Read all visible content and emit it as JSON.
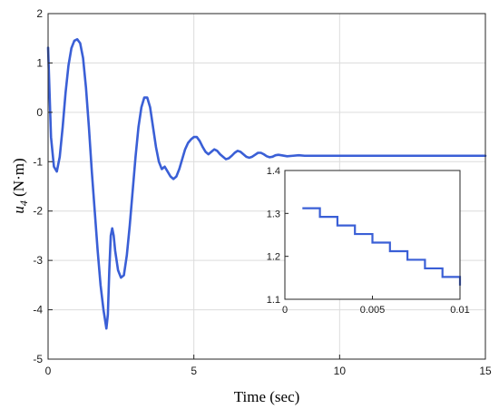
{
  "chart_data": [
    {
      "type": "line",
      "title": "",
      "xlabel": "Time (sec)",
      "ylabel_symbol": "u",
      "ylabel_subscript": "4",
      "ylabel_unit": " (N·m)",
      "xlim": [
        0,
        15
      ],
      "ylim": [
        -5,
        2
      ],
      "xticks": [
        0,
        5,
        10,
        15
      ],
      "yticks": [
        -5,
        -4,
        -3,
        -2,
        -1,
        0,
        1,
        2
      ],
      "grid": true,
      "series_color": "#3a5fd6",
      "series": [
        {
          "x": [
            0.0,
            0.05,
            0.1,
            0.2,
            0.3,
            0.4,
            0.5,
            0.6,
            0.7,
            0.8,
            0.9,
            1.0,
            1.1,
            1.2,
            1.3,
            1.4,
            1.5,
            1.6,
            1.7,
            1.8,
            1.9,
            2.0,
            2.05,
            2.1,
            2.15,
            2.2,
            2.25,
            2.3,
            2.4,
            2.5,
            2.6,
            2.7,
            2.8,
            2.9,
            3.0,
            3.1,
            3.2,
            3.3,
            3.4,
            3.5,
            3.6,
            3.7,
            3.8,
            3.9,
            4.0,
            4.1,
            4.2,
            4.3,
            4.4,
            4.5,
            4.6,
            4.7,
            4.8,
            4.9,
            5.0,
            5.1,
            5.2,
            5.3,
            5.4,
            5.5,
            5.6,
            5.7,
            5.8,
            5.9,
            6.0,
            6.1,
            6.2,
            6.3,
            6.4,
            6.5,
            6.6,
            6.7,
            6.8,
            6.9,
            7.0,
            7.1,
            7.2,
            7.3,
            7.4,
            7.5,
            7.6,
            7.7,
            7.8,
            7.9,
            8.0,
            8.2,
            8.4,
            8.6,
            8.8,
            9.0,
            9.5,
            10.0,
            11.0,
            12.0,
            13.0,
            14.0,
            15.0
          ],
          "y": [
            1.31,
            0.4,
            -0.5,
            -1.1,
            -1.2,
            -0.9,
            -0.3,
            0.4,
            0.95,
            1.3,
            1.45,
            1.48,
            1.4,
            1.1,
            0.5,
            -0.3,
            -1.2,
            -2.0,
            -2.8,
            -3.5,
            -4.0,
            -4.38,
            -4.1,
            -3.2,
            -2.5,
            -2.35,
            -2.5,
            -2.8,
            -3.2,
            -3.35,
            -3.3,
            -2.9,
            -2.3,
            -1.6,
            -0.9,
            -0.3,
            0.1,
            0.3,
            0.3,
            0.1,
            -0.3,
            -0.7,
            -1.0,
            -1.15,
            -1.1,
            -1.2,
            -1.3,
            -1.35,
            -1.3,
            -1.15,
            -0.95,
            -0.75,
            -0.62,
            -0.55,
            -0.5,
            -0.5,
            -0.58,
            -0.7,
            -0.8,
            -0.85,
            -0.8,
            -0.75,
            -0.78,
            -0.85,
            -0.9,
            -0.95,
            -0.93,
            -0.88,
            -0.82,
            -0.78,
            -0.8,
            -0.85,
            -0.9,
            -0.92,
            -0.9,
            -0.86,
            -0.82,
            -0.82,
            -0.85,
            -0.89,
            -0.91,
            -0.9,
            -0.87,
            -0.86,
            -0.87,
            -0.89,
            -0.88,
            -0.87,
            -0.88,
            -0.88,
            -0.88,
            -0.88,
            -0.88,
            -0.88,
            -0.88,
            -0.88,
            -0.88
          ]
        }
      ]
    },
    {
      "type": "line",
      "title": "",
      "xlim": [
        0,
        0.01
      ],
      "ylim": [
        1.1,
        1.4
      ],
      "xticks": [
        0,
        0.005,
        0.01
      ],
      "yticks": [
        1.1,
        1.2,
        1.3,
        1.4
      ],
      "grid": false,
      "series": [
        {
          "x": [
            0.001,
            0.002,
            0.002,
            0.003,
            0.003,
            0.004,
            0.004,
            0.005,
            0.005,
            0.006,
            0.006,
            0.007,
            0.007,
            0.008,
            0.008,
            0.009,
            0.009,
            0.01,
            0.01
          ],
          "y": [
            1.312,
            1.312,
            1.292,
            1.292,
            1.272,
            1.272,
            1.252,
            1.252,
            1.232,
            1.232,
            1.212,
            1.212,
            1.192,
            1.192,
            1.172,
            1.172,
            1.152,
            1.152,
            1.132
          ]
        }
      ]
    }
  ]
}
